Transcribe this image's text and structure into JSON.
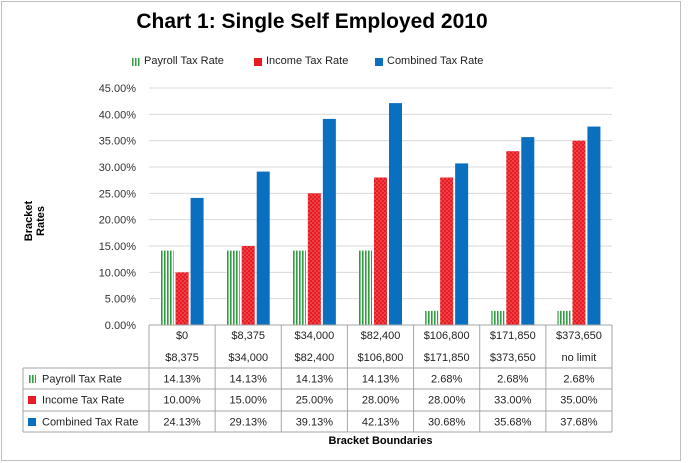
{
  "chart_data": {
    "type": "bar",
    "title": "Chart 1: Single Self Employed 2010",
    "xlabel": "Bracket Boundaries",
    "ylabel": "Bracket Rates",
    "ylim": [
      0,
      45
    ],
    "yticks": [
      "0.00%",
      "5.00%",
      "10.00%",
      "15.00%",
      "20.00%",
      "25.00%",
      "30.00%",
      "35.00%",
      "40.00%",
      "45.00%"
    ],
    "legend_position": "top",
    "categories": [
      {
        "low": "$0",
        "high": "$8,375"
      },
      {
        "low": "$8,375",
        "high": "$34,000"
      },
      {
        "low": "$34,000",
        "high": "$82,400"
      },
      {
        "low": "$82,400",
        "high": "$106,800"
      },
      {
        "low": "$106,800",
        "high": "$171,850"
      },
      {
        "low": "$171,850",
        "high": "$373,650"
      },
      {
        "low": "$373,650",
        "high": "no limit"
      }
    ],
    "series": [
      {
        "name": "Payroll Tax Rate",
        "color": "#2e9e41",
        "values": [
          14.13,
          14.13,
          14.13,
          14.13,
          2.68,
          2.68,
          2.68
        ],
        "labels": [
          "14.13%",
          "14.13%",
          "14.13%",
          "14.13%",
          "2.68%",
          "2.68%",
          "2.68%"
        ]
      },
      {
        "name": "Income Tax Rate",
        "color": "#e81b22",
        "values": [
          10.0,
          15.0,
          25.0,
          28.0,
          28.0,
          33.0,
          35.0
        ],
        "labels": [
          "10.00%",
          "15.00%",
          "25.00%",
          "28.00%",
          "28.00%",
          "33.00%",
          "35.00%"
        ]
      },
      {
        "name": "Combined Tax Rate",
        "color": "#0b6fbf",
        "values": [
          24.13,
          29.13,
          39.13,
          42.13,
          30.68,
          35.68,
          37.68
        ],
        "labels": [
          "24.13%",
          "29.13%",
          "39.13%",
          "42.13%",
          "30.68%",
          "35.68%",
          "37.68%"
        ]
      }
    ]
  }
}
